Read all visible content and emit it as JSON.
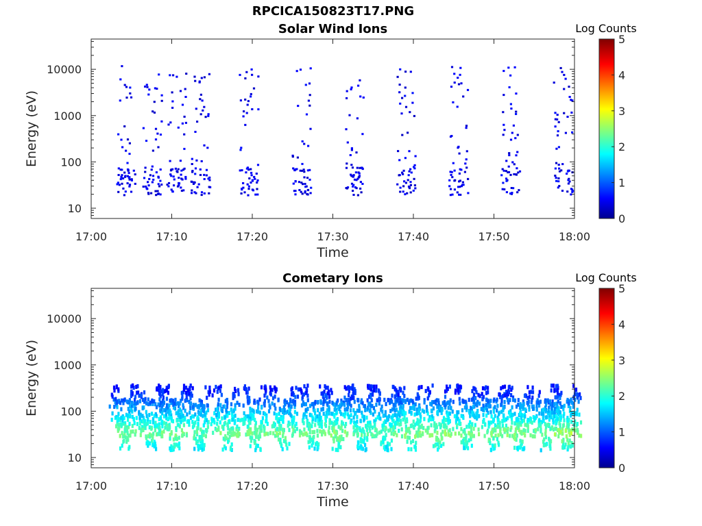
{
  "figure_title": "RPCICA150823T17.PNG",
  "chart_data": [
    {
      "type": "heatmap",
      "title": "Solar Wind Ions",
      "xlabel": "Time",
      "ylabel": "Energy (eV)",
      "x_ticks": [
        "17:00",
        "17:10",
        "17:20",
        "17:30",
        "17:40",
        "17:50",
        "18:00"
      ],
      "y_ticks": [
        "10",
        "100",
        "1000",
        "10000"
      ],
      "y_scale": "log",
      "ylim": [
        6,
        45000
      ],
      "xlim": [
        "17:00",
        "18:00"
      ],
      "colorbar": {
        "label": "Log Counts",
        "ticks": [
          "0",
          "1",
          "2",
          "3",
          "4",
          "5"
        ],
        "range": [
          0,
          5
        ],
        "colormap": "jet"
      },
      "grid": false,
      "bursts": [
        {
          "t": 4.2,
          "level": 0.1
        },
        {
          "t": 7.5,
          "level": 0.1
        },
        {
          "t": 10.5,
          "level": 0.1
        },
        {
          "t": 13.5,
          "level": 0.1
        },
        {
          "t": 19.5,
          "level": 0.1
        },
        {
          "t": 26.0,
          "level": 0.1
        },
        {
          "t": 32.5,
          "level": 0.1
        },
        {
          "t": 39.0,
          "level": 0.1
        },
        {
          "t": 45.5,
          "level": 0.1
        },
        {
          "t": 52.0,
          "level": 0.1
        },
        {
          "t": 58.5,
          "level": 0.1
        }
      ]
    },
    {
      "type": "heatmap",
      "title": "Cometary Ions",
      "xlabel": "Time",
      "ylabel": "Energy (eV)",
      "x_ticks": [
        "17:00",
        "17:10",
        "17:20",
        "17:30",
        "17:40",
        "17:50",
        "18:00"
      ],
      "y_ticks": [
        "10",
        "100",
        "1000",
        "10000"
      ],
      "y_scale": "log",
      "ylim": [
        6,
        45000
      ],
      "xlim": [
        "17:00",
        "18:00"
      ],
      "colorbar": {
        "label": "Log Counts",
        "ticks": [
          "0",
          "1",
          "2",
          "3",
          "4",
          "5"
        ],
        "range": [
          0,
          5
        ],
        "colormap": "jet"
      },
      "grid": false,
      "bursts": [
        {
          "t": 4.0,
          "level": 1.6
        },
        {
          "t": 7.3,
          "level": 1.5
        },
        {
          "t": 10.3,
          "level": 1.6
        },
        {
          "t": 13.3,
          "level": 1.5
        },
        {
          "t": 16.8,
          "level": 1.6
        },
        {
          "t": 20.3,
          "level": 1.6
        },
        {
          "t": 23.8,
          "level": 1.6
        },
        {
          "t": 27.5,
          "level": 1.6
        },
        {
          "t": 30.5,
          "level": 1.7
        },
        {
          "t": 33.5,
          "level": 1.4
        },
        {
          "t": 36.5,
          "level": 1.5
        },
        {
          "t": 39.5,
          "level": 1.7
        },
        {
          "t": 43.0,
          "level": 1.7
        },
        {
          "t": 46.5,
          "level": 1.6
        },
        {
          "t": 49.8,
          "level": 1.6
        },
        {
          "t": 53.0,
          "level": 1.7
        },
        {
          "t": 56.3,
          "level": 1.6
        },
        {
          "t": 59.0,
          "level": 1.8
        }
      ]
    }
  ]
}
